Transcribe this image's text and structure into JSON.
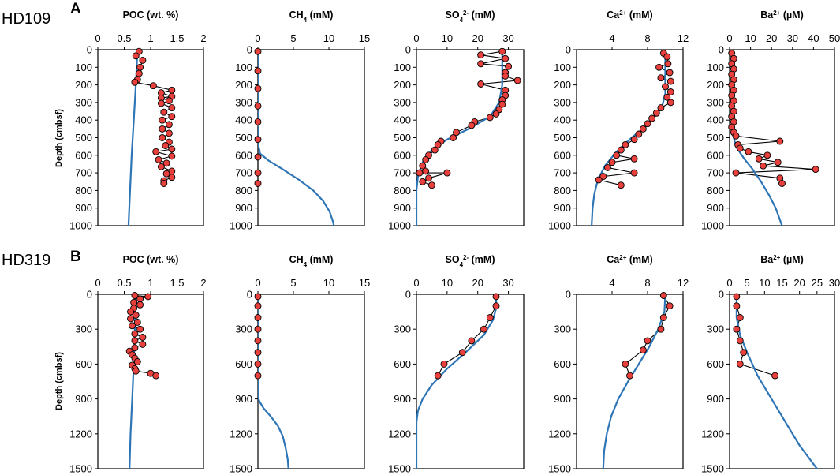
{
  "figure": {
    "sites": [
      {
        "label": "HD109",
        "letter": "A",
        "ylabel": "Depth (cmbsf)"
      },
      {
        "label": "HD319",
        "letter": "B",
        "ylabel": "Depth (cmbsf)"
      }
    ],
    "colors": {
      "model_line": "#2e75b6",
      "marker_fill": "#e8403c",
      "marker_edge": "#000000",
      "connector": "#000000"
    }
  },
  "chart_data": [
    {
      "id": "A-poc",
      "type": "line",
      "site": "HD109",
      "title": "POC (wt. %)",
      "xticks": [
        "0",
        "0.5",
        "1",
        "1.5",
        "2"
      ],
      "xlim": [
        0,
        2
      ],
      "yticks": [
        "0",
        "100",
        "200",
        "300",
        "400",
        "500",
        "600",
        "700",
        "800",
        "900",
        "1000"
      ],
      "ylim": [
        0,
        1000
      ],
      "observed": [
        [
          0.78,
          10
        ],
        [
          0.72,
          35
        ],
        [
          0.85,
          60
        ],
        [
          0.8,
          100
        ],
        [
          0.78,
          135
        ],
        [
          0.75,
          170
        ],
        [
          0.7,
          185
        ],
        [
          1.05,
          205
        ],
        [
          1.4,
          230
        ],
        [
          1.2,
          245
        ],
        [
          1.4,
          265
        ],
        [
          1.2,
          275
        ],
        [
          1.35,
          290
        ],
        [
          1.2,
          305
        ],
        [
          1.4,
          330
        ],
        [
          1.25,
          355
        ],
        [
          1.4,
          380
        ],
        [
          1.22,
          400
        ],
        [
          1.35,
          425
        ],
        [
          1.22,
          450
        ],
        [
          1.35,
          475
        ],
        [
          1.22,
          500
        ],
        [
          1.35,
          525
        ],
        [
          1.28,
          545
        ],
        [
          1.4,
          565
        ],
        [
          1.1,
          580
        ],
        [
          1.4,
          605
        ],
        [
          1.15,
          625
        ],
        [
          1.3,
          645
        ],
        [
          1.2,
          665
        ],
        [
          1.4,
          690
        ],
        [
          1.3,
          705
        ],
        [
          1.4,
          725
        ],
        [
          1.25,
          745
        ],
        [
          1.25,
          760
        ]
      ],
      "model": [
        [
          0.75,
          0
        ],
        [
          0.72,
          200
        ],
        [
          0.68,
          400
        ],
        [
          0.64,
          600
        ],
        [
          0.61,
          800
        ],
        [
          0.58,
          1000
        ]
      ]
    },
    {
      "id": "A-ch4",
      "type": "line",
      "site": "HD109",
      "title": "CH4 (mM)",
      "xticks": [
        "0",
        "5",
        "10",
        "15"
      ],
      "xlim": [
        0,
        15
      ],
      "yticks": [
        "0",
        "100",
        "200",
        "300",
        "400",
        "500",
        "600",
        "700",
        "800",
        "900",
        "1000"
      ],
      "ylim": [
        0,
        1000
      ],
      "observed": [
        [
          0,
          10
        ],
        [
          0,
          120
        ],
        [
          0,
          220
        ],
        [
          0,
          320
        ],
        [
          0,
          410
        ],
        [
          0,
          510
        ],
        [
          0,
          610
        ],
        [
          0,
          700
        ],
        [
          0,
          760
        ]
      ],
      "model": [
        [
          0.05,
          0
        ],
        [
          0.05,
          540
        ],
        [
          0.3,
          590
        ],
        [
          1.5,
          630
        ],
        [
          3.5,
          680
        ],
        [
          5.8,
          740
        ],
        [
          7.8,
          800
        ],
        [
          9.2,
          860
        ],
        [
          10.1,
          920
        ],
        [
          10.6,
          980
        ],
        [
          10.7,
          1000
        ]
      ]
    },
    {
      "id": "A-so4",
      "type": "line",
      "site": "HD109",
      "title": "SO42- (mM)",
      "xticks": [
        "0",
        "10",
        "20",
        "30"
      ],
      "xlim": [
        0,
        35
      ],
      "yticks": [
        "0",
        "100",
        "200",
        "300",
        "400",
        "500",
        "600",
        "700",
        "800",
        "900",
        "1000"
      ],
      "ylim": [
        0,
        1000
      ],
      "observed": [
        [
          28,
          10
        ],
        [
          21,
          30
        ],
        [
          29,
          50
        ],
        [
          21,
          80
        ],
        [
          30,
          95
        ],
        [
          29,
          130
        ],
        [
          29,
          150
        ],
        [
          33,
          175
        ],
        [
          21,
          195
        ],
        [
          29,
          230
        ],
        [
          29,
          260
        ],
        [
          28,
          285
        ],
        [
          28,
          310
        ],
        [
          27,
          340
        ],
        [
          26,
          365
        ],
        [
          24,
          385
        ],
        [
          19,
          410
        ],
        [
          18,
          430
        ],
        [
          13,
          470
        ],
        [
          12,
          500
        ],
        [
          8,
          520
        ],
        [
          7,
          540
        ],
        [
          6,
          570
        ],
        [
          4,
          600
        ],
        [
          3,
          625
        ],
        [
          2,
          660
        ],
        [
          3,
          690
        ],
        [
          1,
          700
        ],
        [
          10,
          700
        ],
        [
          4,
          730
        ],
        [
          2,
          750
        ],
        [
          5,
          770
        ]
      ],
      "model": [
        [
          28,
          0
        ],
        [
          28,
          200
        ],
        [
          27,
          300
        ],
        [
          24,
          380
        ],
        [
          17,
          450
        ],
        [
          10,
          510
        ],
        [
          5,
          570
        ],
        [
          2,
          640
        ],
        [
          0.5,
          720
        ],
        [
          0,
          800
        ],
        [
          0,
          1000
        ]
      ]
    },
    {
      "id": "A-ca",
      "type": "line",
      "site": "HD109",
      "title": "Ca2+ (mM)",
      "xticks": [
        "4",
        "8",
        "12"
      ],
      "xlim": [
        0,
        12
      ],
      "yticks": [
        "0",
        "100",
        "200",
        "300",
        "400",
        "500",
        "600",
        "700",
        "800",
        "900",
        "1000"
      ],
      "ylim": [
        0,
        1000
      ],
      "observed": [
        [
          9.8,
          20
        ],
        [
          10.2,
          40
        ],
        [
          10.3,
          80
        ],
        [
          9.3,
          100
        ],
        [
          10.5,
          130
        ],
        [
          9.5,
          160
        ],
        [
          10.6,
          180
        ],
        [
          10,
          210
        ],
        [
          10.6,
          240
        ],
        [
          10.2,
          270
        ],
        [
          10.6,
          300
        ],
        [
          9.5,
          330
        ],
        [
          9.0,
          360
        ],
        [
          8.5,
          390
        ],
        [
          8.0,
          420
        ],
        [
          7.5,
          450
        ],
        [
          7.0,
          480
        ],
        [
          6.5,
          510
        ],
        [
          5.5,
          540
        ],
        [
          5.0,
          570
        ],
        [
          4.5,
          600
        ],
        [
          6.5,
          620
        ],
        [
          4.0,
          640
        ],
        [
          3.5,
          670
        ],
        [
          6.5,
          700
        ],
        [
          3.0,
          720
        ],
        [
          2.5,
          740
        ],
        [
          5.0,
          770
        ]
      ],
      "model": [
        [
          10,
          0
        ],
        [
          10,
          250
        ],
        [
          9.6,
          330
        ],
        [
          8.2,
          420
        ],
        [
          6.2,
          500
        ],
        [
          4.5,
          580
        ],
        [
          3.2,
          660
        ],
        [
          2.4,
          740
        ],
        [
          2.0,
          820
        ],
        [
          1.8,
          900
        ],
        [
          1.7,
          1000
        ]
      ]
    },
    {
      "id": "A-ba",
      "type": "line",
      "site": "HD109",
      "title": "Ba2+ (µM)",
      "xticks": [
        "0",
        "10",
        "20",
        "30",
        "40",
        "50"
      ],
      "xlim": [
        0,
        50
      ],
      "yticks": [
        "0",
        "100",
        "200",
        "300",
        "400",
        "500",
        "600",
        "700",
        "800",
        "900",
        "1000"
      ],
      "ylim": [
        0,
        1000
      ],
      "observed": [
        [
          1,
          20
        ],
        [
          2,
          50
        ],
        [
          1,
          80
        ],
        [
          2,
          110
        ],
        [
          1,
          140
        ],
        [
          2,
          170
        ],
        [
          1,
          200
        ],
        [
          2,
          230
        ],
        [
          1,
          260
        ],
        [
          2,
          290
        ],
        [
          1,
          320
        ],
        [
          2,
          350
        ],
        [
          1,
          380
        ],
        [
          2,
          410
        ],
        [
          1,
          440
        ],
        [
          2,
          470
        ],
        [
          3,
          490
        ],
        [
          24,
          520
        ],
        [
          4,
          540
        ],
        [
          5,
          560
        ],
        [
          9,
          580
        ],
        [
          18,
          600
        ],
        [
          14,
          620
        ],
        [
          23,
          640
        ],
        [
          16,
          660
        ],
        [
          41,
          680
        ],
        [
          3,
          700
        ],
        [
          24,
          730
        ],
        [
          25,
          760
        ]
      ],
      "model": [
        [
          1,
          0
        ],
        [
          1,
          450
        ],
        [
          3,
          550
        ],
        [
          7,
          620
        ],
        [
          11,
          680
        ],
        [
          15,
          750
        ],
        [
          19,
          830
        ],
        [
          22,
          900
        ],
        [
          25,
          1000
        ]
      ]
    },
    {
      "id": "B-poc",
      "type": "line",
      "site": "HD319",
      "title": "POC (wt. %)",
      "xticks": [
        "0",
        "0.5",
        "1",
        "1.5",
        "2"
      ],
      "xlim": [
        0,
        2
      ],
      "yticks": [
        "0",
        "300",
        "600",
        "900",
        "1200",
        "1500"
      ],
      "ylim": [
        0,
        1500
      ],
      "observed": [
        [
          0.7,
          10
        ],
        [
          0.95,
          20
        ],
        [
          0.8,
          40
        ],
        [
          0.68,
          70
        ],
        [
          0.8,
          90
        ],
        [
          0.68,
          120
        ],
        [
          0.62,
          150
        ],
        [
          0.72,
          180
        ],
        [
          0.62,
          210
        ],
        [
          0.75,
          240
        ],
        [
          0.65,
          270
        ],
        [
          0.8,
          300
        ],
        [
          0.7,
          340
        ],
        [
          0.85,
          370
        ],
        [
          0.7,
          400
        ],
        [
          0.85,
          430
        ],
        [
          0.7,
          460
        ],
        [
          0.6,
          490
        ],
        [
          0.65,
          520
        ],
        [
          0.7,
          550
        ],
        [
          0.75,
          580
        ],
        [
          0.65,
          610
        ],
        [
          0.7,
          640
        ],
        [
          0.72,
          660
        ],
        [
          1.0,
          680
        ],
        [
          1.1,
          700
        ]
      ],
      "model": [
        [
          0.72,
          0
        ],
        [
          0.7,
          300
        ],
        [
          0.68,
          600
        ],
        [
          0.65,
          900
        ],
        [
          0.62,
          1200
        ],
        [
          0.6,
          1500
        ]
      ]
    },
    {
      "id": "B-ch4",
      "type": "line",
      "site": "HD319",
      "title": "CH4 (mM)",
      "xticks": [
        "0",
        "5",
        "10",
        "15"
      ],
      "xlim": [
        0,
        15
      ],
      "yticks": [
        "0",
        "300",
        "600",
        "900",
        "1200",
        "1500"
      ],
      "ylim": [
        0,
        1500
      ],
      "observed": [
        [
          0,
          20
        ],
        [
          0,
          100
        ],
        [
          0,
          200
        ],
        [
          0,
          300
        ],
        [
          0,
          400
        ],
        [
          0,
          500
        ],
        [
          0,
          600
        ],
        [
          0,
          700
        ]
      ],
      "model": [
        [
          0,
          0
        ],
        [
          0,
          880
        ],
        [
          0.2,
          920
        ],
        [
          0.8,
          980
        ],
        [
          1.8,
          1050
        ],
        [
          2.8,
          1130
        ],
        [
          3.5,
          1220
        ],
        [
          3.9,
          1320
        ],
        [
          4.2,
          1420
        ],
        [
          4.3,
          1500
        ]
      ]
    },
    {
      "id": "B-so4",
      "type": "line",
      "site": "HD319",
      "title": "SO42- (mM)",
      "xticks": [
        "0",
        "10",
        "20",
        "30"
      ],
      "xlim": [
        0,
        35
      ],
      "yticks": [
        "0",
        "300",
        "600",
        "900",
        "1200",
        "1500"
      ],
      "ylim": [
        0,
        1500
      ],
      "observed": [
        [
          26,
          20
        ],
        [
          26,
          100
        ],
        [
          24,
          200
        ],
        [
          22,
          300
        ],
        [
          18,
          400
        ],
        [
          15,
          500
        ],
        [
          9,
          600
        ],
        [
          7,
          700
        ]
      ],
      "model": [
        [
          26,
          0
        ],
        [
          26,
          120
        ],
        [
          25,
          220
        ],
        [
          22,
          350
        ],
        [
          16,
          500
        ],
        [
          10,
          640
        ],
        [
          5,
          780
        ],
        [
          2,
          900
        ],
        [
          0.5,
          1000
        ],
        [
          0,
          1100
        ],
        [
          0,
          1500
        ]
      ]
    },
    {
      "id": "B-ca",
      "type": "line",
      "site": "HD319",
      "title": "Ca2+ (mM)",
      "xticks": [
        "4",
        "8",
        "12"
      ],
      "xlim": [
        0,
        12
      ],
      "yticks": [
        "0",
        "300",
        "600",
        "900",
        "1200",
        "1500"
      ],
      "ylim": [
        0,
        1500
      ],
      "observed": [
        [
          9.8,
          10
        ],
        [
          10.5,
          100
        ],
        [
          9.8,
          200
        ],
        [
          9.5,
          300
        ],
        [
          8.0,
          400
        ],
        [
          7.5,
          480
        ],
        [
          5.5,
          600
        ],
        [
          6.0,
          700
        ]
      ],
      "model": [
        [
          10,
          0
        ],
        [
          9.9,
          150
        ],
        [
          9.2,
          300
        ],
        [
          8.2,
          450
        ],
        [
          7,
          600
        ],
        [
          5.8,
          750
        ],
        [
          4.7,
          900
        ],
        [
          3.9,
          1050
        ],
        [
          3.4,
          1200
        ],
        [
          3.1,
          1350
        ],
        [
          3.0,
          1500
        ]
      ]
    },
    {
      "id": "B-ba",
      "type": "line",
      "site": "HD319",
      "title": "Ba2+ (µM)",
      "xticks": [
        "0",
        "5",
        "10",
        "15",
        "20",
        "25",
        "30"
      ],
      "xlim": [
        0,
        30
      ],
      "yticks": [
        "0",
        "300",
        "600",
        "900",
        "1200",
        "1500"
      ],
      "ylim": [
        0,
        1500
      ],
      "observed": [
        [
          2,
          20
        ],
        [
          2,
          100
        ],
        [
          3,
          200
        ],
        [
          2,
          300
        ],
        [
          3,
          400
        ],
        [
          4,
          500
        ],
        [
          3,
          600
        ],
        [
          13,
          700
        ]
      ],
      "model": [
        [
          2,
          0
        ],
        [
          2,
          200
        ],
        [
          3,
          350
        ],
        [
          5,
          500
        ],
        [
          8,
          700
        ],
        [
          12,
          900
        ],
        [
          16,
          1100
        ],
        [
          20,
          1300
        ],
        [
          25,
          1500
        ]
      ]
    }
  ]
}
